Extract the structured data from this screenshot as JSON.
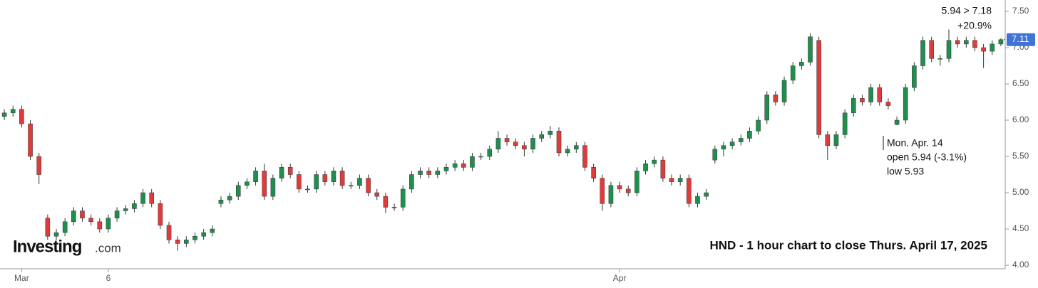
{
  "chart_data": {
    "type": "candlestick",
    "caption": "HND - 1 hour chart to close Thurs. April 17, 2025",
    "logo": "Investing",
    "logo_suffix": ".com",
    "annotations": [
      "5.94 > 7.18",
      "+20.9%",
      "Mon. Apr. 14",
      "open 5.94 (-3.1%)",
      "low 5.93"
    ],
    "last_price": 7.11,
    "up_color": "#1f8f4e",
    "down_color": "#e03b3b",
    "last_color": "#3f73d6",
    "xlim": [
      -0.5,
      115.5
    ],
    "xticks": [
      {
        "value": 2,
        "label": "Mar"
      },
      {
        "value": 12,
        "label": "6"
      },
      {
        "value": 71,
        "label": "Apr"
      }
    ],
    "ylim": [
      4.0,
      7.5
    ],
    "yticks": [
      {
        "value": 4,
        "label": "4.00"
      },
      {
        "value": 4.5,
        "label": "4.50"
      },
      {
        "value": 5,
        "label": "5.00"
      },
      {
        "value": 5.5,
        "label": "5.50"
      },
      {
        "value": 6,
        "label": "6.00"
      },
      {
        "value": 6.5,
        "label": "6.50"
      },
      {
        "value": 7,
        "label": "7.00"
      },
      {
        "value": 7.5,
        "label": "7.50"
      }
    ],
    "open": [
      6.05,
      6.1,
      6.15,
      5.95,
      5.5,
      4.65,
      4.4,
      4.45,
      4.6,
      4.75,
      4.65,
      4.6,
      4.5,
      4.65,
      4.75,
      4.78,
      4.85,
      5.0,
      4.85,
      4.55,
      4.35,
      4.3,
      4.35,
      4.4,
      4.45,
      4.85,
      4.9,
      4.95,
      5.1,
      5.15,
      5.3,
      4.95,
      5.2,
      5.35,
      5.25,
      5.05,
      5.05,
      5.25,
      5.15,
      5.3,
      5.1,
      5.1,
      5.2,
      5.0,
      4.95,
      4.8,
      4.8,
      5.05,
      5.25,
      5.3,
      5.25,
      5.3,
      5.35,
      5.4,
      5.35,
      5.5,
      5.5,
      5.6,
      5.75,
      5.7,
      5.65,
      5.6,
      5.75,
      5.8,
      5.85,
      5.55,
      5.6,
      5.65,
      5.35,
      5.2,
      4.85,
      5.1,
      5.05,
      5.0,
      5.3,
      5.4,
      5.45,
      5.2,
      5.15,
      5.2,
      4.85,
      4.95,
      5.45,
      5.6,
      5.65,
      5.7,
      5.75,
      5.85,
      6.0,
      6.35,
      6.25,
      6.55,
      6.75,
      6.8,
      7.1,
      5.8,
      5.65,
      5.8,
      6.1,
      6.3,
      6.25,
      6.45,
      6.25,
      5.94,
      6.0,
      6.45,
      6.75,
      7.1,
      6.85,
      6.85,
      7.1,
      7.05,
      7.1,
      7.0,
      6.95,
      7.05
    ],
    "high": [
      6.15,
      6.2,
      6.2,
      6.0,
      5.55,
      4.7,
      4.5,
      4.65,
      4.8,
      4.8,
      4.7,
      4.65,
      4.7,
      4.8,
      4.83,
      4.9,
      5.05,
      5.05,
      4.9,
      4.6,
      4.4,
      4.4,
      4.45,
      4.5,
      4.55,
      4.95,
      5.0,
      5.15,
      5.2,
      5.35,
      5.4,
      5.25,
      5.4,
      5.4,
      5.3,
      5.1,
      5.3,
      5.3,
      5.35,
      5.35,
      5.15,
      5.25,
      5.25,
      5.05,
      5.0,
      4.85,
      5.1,
      5.3,
      5.35,
      5.35,
      5.35,
      5.4,
      5.45,
      5.45,
      5.55,
      5.55,
      5.65,
      5.85,
      5.8,
      5.75,
      5.7,
      5.8,
      5.85,
      5.92,
      5.9,
      5.65,
      5.7,
      5.7,
      5.4,
      5.25,
      5.15,
      5.15,
      5.1,
      5.35,
      5.45,
      5.5,
      5.5,
      5.25,
      5.25,
      5.25,
      5.0,
      5.05,
      5.65,
      5.7,
      5.75,
      5.8,
      5.9,
      6.05,
      6.4,
      6.4,
      6.6,
      6.8,
      6.85,
      7.2,
      7.15,
      5.85,
      5.85,
      6.15,
      6.35,
      6.35,
      6.5,
      6.5,
      6.3,
      6.05,
      6.5,
      6.8,
      7.15,
      7.15,
      6.9,
      7.25,
      7.15,
      7.15,
      7.15,
      7.05,
      7.1,
      7.13
    ],
    "low": [
      6.0,
      6.05,
      5.9,
      5.45,
      5.12,
      4.35,
      4.35,
      4.4,
      4.55,
      4.6,
      4.55,
      4.45,
      4.45,
      4.6,
      4.7,
      4.73,
      4.8,
      4.8,
      4.5,
      4.3,
      4.2,
      4.25,
      4.3,
      4.35,
      4.4,
      4.8,
      4.85,
      4.9,
      5.05,
      5.1,
      4.9,
      4.9,
      5.15,
      5.2,
      5.0,
      5.0,
      5.0,
      5.1,
      5.1,
      5.05,
      5.05,
      5.05,
      4.95,
      4.9,
      4.72,
      4.75,
      4.75,
      5.0,
      5.2,
      5.2,
      5.2,
      5.25,
      5.3,
      5.3,
      5.3,
      5.45,
      5.45,
      5.55,
      5.65,
      5.6,
      5.5,
      5.55,
      5.7,
      5.75,
      5.5,
      5.5,
      5.55,
      5.3,
      5.15,
      4.75,
      4.8,
      5.0,
      4.95,
      4.95,
      5.25,
      5.35,
      5.15,
      5.1,
      5.1,
      4.8,
      4.8,
      4.9,
      5.4,
      5.5,
      5.6,
      5.65,
      5.7,
      5.8,
      5.95,
      6.2,
      6.2,
      6.5,
      6.7,
      6.75,
      5.75,
      5.45,
      5.6,
      5.75,
      6.05,
      6.2,
      6.2,
      6.2,
      6.15,
      5.93,
      5.95,
      6.4,
      6.7,
      6.8,
      6.75,
      6.8,
      7.0,
      7.0,
      6.95,
      6.72,
      6.9,
      7.02
    ],
    "close": [
      6.1,
      6.15,
      5.95,
      5.5,
      5.25,
      4.4,
      4.45,
      4.6,
      4.75,
      4.65,
      4.6,
      4.5,
      4.65,
      4.75,
      4.78,
      4.85,
      5.0,
      4.85,
      4.55,
      4.35,
      4.3,
      4.35,
      4.4,
      4.45,
      4.5,
      4.9,
      4.95,
      5.1,
      5.15,
      5.3,
      4.95,
      5.2,
      5.35,
      5.25,
      5.05,
      5.05,
      5.25,
      5.15,
      5.3,
      5.1,
      5.1,
      5.2,
      5.0,
      4.95,
      4.8,
      4.8,
      5.05,
      5.25,
      5.3,
      5.25,
      5.3,
      5.35,
      5.4,
      5.35,
      5.5,
      5.5,
      5.6,
      5.75,
      5.7,
      5.65,
      5.6,
      5.75,
      5.8,
      5.85,
      5.55,
      5.6,
      5.65,
      5.35,
      5.2,
      4.85,
      5.1,
      5.05,
      5.0,
      5.3,
      5.4,
      5.45,
      5.2,
      5.15,
      5.2,
      4.85,
      4.95,
      5.0,
      5.6,
      5.65,
      5.7,
      5.75,
      5.85,
      6.0,
      6.35,
      6.25,
      6.55,
      6.75,
      6.8,
      7.15,
      5.8,
      5.65,
      5.8,
      6.1,
      6.3,
      6.25,
      6.45,
      6.25,
      6.2,
      6.0,
      6.45,
      6.75,
      7.1,
      6.85,
      6.85,
      7.1,
      7.05,
      7.1,
      7.0,
      6.95,
      7.05,
      7.11
    ]
  }
}
